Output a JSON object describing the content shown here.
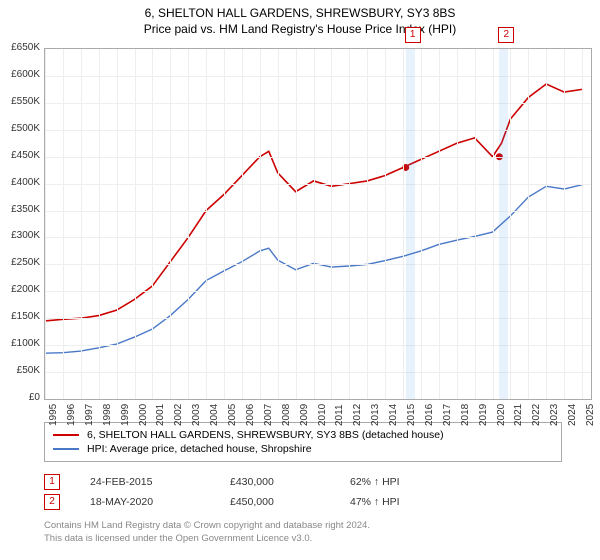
{
  "title": "6, SHELTON HALL GARDENS, SHREWSBURY, SY3 8BS",
  "subtitle": "Price paid vs. HM Land Registry's House Price Index (HPI)",
  "chart": {
    "type": "line",
    "background_color": "#ffffff",
    "grid_color": "#eeeeee",
    "axis_color": "#aaaaaa",
    "ylim": [
      0,
      650000
    ],
    "ytick_step": 50000,
    "ytick_labels": [
      "£0",
      "£50K",
      "£100K",
      "£150K",
      "£200K",
      "£250K",
      "£300K",
      "£350K",
      "£400K",
      "£450K",
      "£500K",
      "£550K",
      "£600K",
      "£650K"
    ],
    "xlim": [
      1995,
      2025.5
    ],
    "xticks": [
      1995,
      1996,
      1997,
      1998,
      1999,
      2000,
      2001,
      2002,
      2003,
      2004,
      2005,
      2006,
      2007,
      2008,
      2009,
      2010,
      2011,
      2012,
      2013,
      2014,
      2015,
      2016,
      2017,
      2018,
      2019,
      2020,
      2021,
      2022,
      2023,
      2024,
      2025
    ],
    "series": [
      {
        "name": "property",
        "label": "6, SHELTON HALL GARDENS, SHREWSBURY, SY3 8BS (detached house)",
        "color": "#cc0000",
        "line_width": 1.6,
        "points": [
          [
            1995,
            145000
          ],
          [
            1996,
            148000
          ],
          [
            1997,
            150000
          ],
          [
            1998,
            155000
          ],
          [
            1999,
            165000
          ],
          [
            2000,
            185000
          ],
          [
            2001,
            210000
          ],
          [
            2002,
            255000
          ],
          [
            2003,
            300000
          ],
          [
            2004,
            350000
          ],
          [
            2005,
            380000
          ],
          [
            2006,
            415000
          ],
          [
            2007,
            450000
          ],
          [
            2007.5,
            460000
          ],
          [
            2008,
            420000
          ],
          [
            2009,
            385000
          ],
          [
            2010,
            405000
          ],
          [
            2011,
            395000
          ],
          [
            2012,
            400000
          ],
          [
            2013,
            405000
          ],
          [
            2014,
            415000
          ],
          [
            2015,
            430000
          ],
          [
            2016,
            445000
          ],
          [
            2017,
            460000
          ],
          [
            2018,
            475000
          ],
          [
            2019,
            485000
          ],
          [
            2020,
            450000
          ],
          [
            2020.5,
            475000
          ],
          [
            2021,
            520000
          ],
          [
            2022,
            560000
          ],
          [
            2023,
            585000
          ],
          [
            2024,
            570000
          ],
          [
            2025,
            575000
          ]
        ]
      },
      {
        "name": "hpi",
        "label": "HPI: Average price, detached house, Shropshire",
        "color": "#4a78c8",
        "line_width": 1.4,
        "points": [
          [
            1995,
            85000
          ],
          [
            1996,
            86000
          ],
          [
            1997,
            89000
          ],
          [
            1998,
            95000
          ],
          [
            1999,
            102000
          ],
          [
            2000,
            115000
          ],
          [
            2001,
            130000
          ],
          [
            2002,
            155000
          ],
          [
            2003,
            185000
          ],
          [
            2004,
            220000
          ],
          [
            2005,
            238000
          ],
          [
            2006,
            255000
          ],
          [
            2007,
            275000
          ],
          [
            2007.5,
            280000
          ],
          [
            2008,
            258000
          ],
          [
            2009,
            240000
          ],
          [
            2010,
            252000
          ],
          [
            2011,
            245000
          ],
          [
            2012,
            247000
          ],
          [
            2013,
            250000
          ],
          [
            2014,
            257000
          ],
          [
            2015,
            265000
          ],
          [
            2016,
            275000
          ],
          [
            2017,
            287000
          ],
          [
            2018,
            295000
          ],
          [
            2019,
            302000
          ],
          [
            2020,
            310000
          ],
          [
            2021,
            340000
          ],
          [
            2022,
            375000
          ],
          [
            2023,
            395000
          ],
          [
            2024,
            390000
          ],
          [
            2025,
            398000
          ]
        ]
      }
    ],
    "event_markers": [
      {
        "num": "1",
        "x": 2015.15,
        "point": [
          2015.15,
          430000
        ],
        "point_color": "#cc0000"
      },
      {
        "num": "2",
        "x": 2020.38,
        "point": [
          2020.38,
          450000
        ],
        "point_color": "#cc0000"
      }
    ],
    "band_width_years": 0.5
  },
  "legend": {
    "rows": [
      {
        "color": "#cc0000",
        "label": "6, SHELTON HALL GARDENS, SHREWSBURY, SY3 8BS (detached house)"
      },
      {
        "color": "#4a78c8",
        "label": "HPI: Average price, detached house, Shropshire"
      }
    ]
  },
  "events_table": {
    "rows": [
      {
        "num": "1",
        "date": "24-FEB-2015",
        "price": "£430,000",
        "delta": "62% ↑ HPI"
      },
      {
        "num": "2",
        "date": "18-MAY-2020",
        "price": "£450,000",
        "delta": "47% ↑ HPI"
      }
    ]
  },
  "footer": {
    "line1": "Contains HM Land Registry data © Crown copyright and database right 2024.",
    "line2": "This data is licensed under the Open Government Licence v3.0."
  }
}
